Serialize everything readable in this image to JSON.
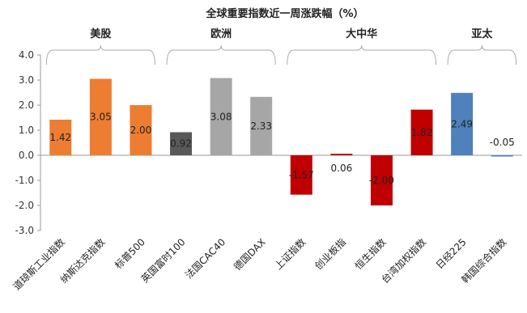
{
  "chart_data": {
    "type": "bar",
    "title": "全球重要指数近一周涨跌幅（%）",
    "categories": [
      "道琼斯工业指数",
      "纳斯达克指数",
      "标普500",
      "英国富时100",
      "法国CAC40",
      "德国DAX",
      "上证指数",
      "创业板指",
      "恒生指数",
      "台湾加权指数",
      "日经225",
      "韩国综合指数"
    ],
    "values": [
      1.42,
      3.05,
      2.0,
      0.92,
      3.08,
      2.33,
      -1.57,
      0.06,
      -2.0,
      1.82,
      2.49,
      -0.05
    ],
    "data_labels": [
      "1.42",
      "3.05",
      "2.00",
      "0.92",
      "3.08",
      "2.33",
      "-1.57",
      "0.06",
      "-2.00",
      "1.82",
      "2.49",
      "-0.05"
    ],
    "groups": [
      {
        "name": "美股",
        "start": 0,
        "end": 2
      },
      {
        "name": "欧洲",
        "start": 3,
        "end": 5
      },
      {
        "name": "大中华",
        "start": 6,
        "end": 9
      },
      {
        "name": "亚太",
        "start": 10,
        "end": 11
      }
    ],
    "ylim": [
      -3.0,
      4.0
    ],
    "yticks": [
      "4.0",
      "3.0",
      "2.0",
      "1.0",
      "0.0",
      "-1.0",
      "-2.0",
      "-3.0"
    ],
    "bar_colors": [
      "#ED7D31",
      "#ED7D31",
      "#ED7D31",
      "#595959",
      "#A6A6A6",
      "#A6A6A6",
      "#C00000",
      "#C00000",
      "#C00000",
      "#C00000",
      "#4F81BD",
      "#4F81BD"
    ],
    "grid": false,
    "legend": "none"
  }
}
